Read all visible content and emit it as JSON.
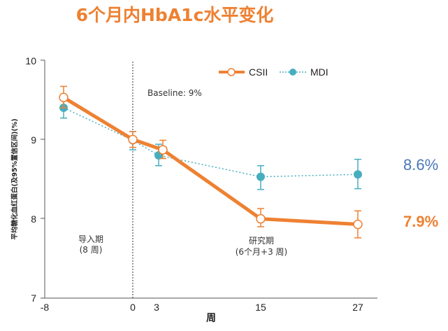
{
  "chart_data": {
    "type": "line",
    "title": "6个月内HbA1c水平变化",
    "xlabel": "周",
    "ylabel": "平均糖化血红蛋白(及95%置信区间)(%)",
    "x_ticks": [
      "-8",
      "0",
      "3",
      "15",
      "27"
    ],
    "y_ticks": [
      "7",
      "8",
      "9",
      "10"
    ],
    "xlim": [
      -8,
      27
    ],
    "ylim": [
      7,
      10
    ],
    "legend_position": "top-right",
    "reference_line_x": 0,
    "baseline_note": "Baseline: 9%",
    "phase_labels": [
      {
        "line1": "导入期",
        "line2": "(8 周)"
      },
      {
        "line1": "研究期",
        "line2": "(6个月+3 周)"
      }
    ],
    "series": [
      {
        "name": "CSII",
        "color": "#EE8132",
        "end_label": "7.9%",
        "points": [
          {
            "x": -8,
            "y": 9.53,
            "lo": 9.4,
            "hi": 9.67
          },
          {
            "x": 0,
            "y": 9.0,
            "lo": 8.9,
            "hi": 9.1
          },
          {
            "x": 3,
            "y": 8.87,
            "lo": 8.76,
            "hi": 8.99
          },
          {
            "x": 15,
            "y": 8.0,
            "lo": 7.9,
            "hi": 8.13
          },
          {
            "x": 27,
            "y": 7.93,
            "lo": 7.76,
            "hi": 8.1
          }
        ]
      },
      {
        "name": "MDI",
        "color": "#46AEBF",
        "end_color": "#4A77B8",
        "end_label": "8.6%",
        "points": [
          {
            "x": -8,
            "y": 9.4,
            "lo": 9.27,
            "hi": 9.53
          },
          {
            "x": 0,
            "y": 8.99,
            "lo": 8.87,
            "hi": 9.1
          },
          {
            "x": 3,
            "y": 8.8,
            "lo": 8.67,
            "hi": 8.94
          },
          {
            "x": 15,
            "y": 8.53,
            "lo": 8.37,
            "hi": 8.67
          },
          {
            "x": 27,
            "y": 8.56,
            "lo": 8.38,
            "hi": 8.75
          }
        ]
      }
    ]
  }
}
